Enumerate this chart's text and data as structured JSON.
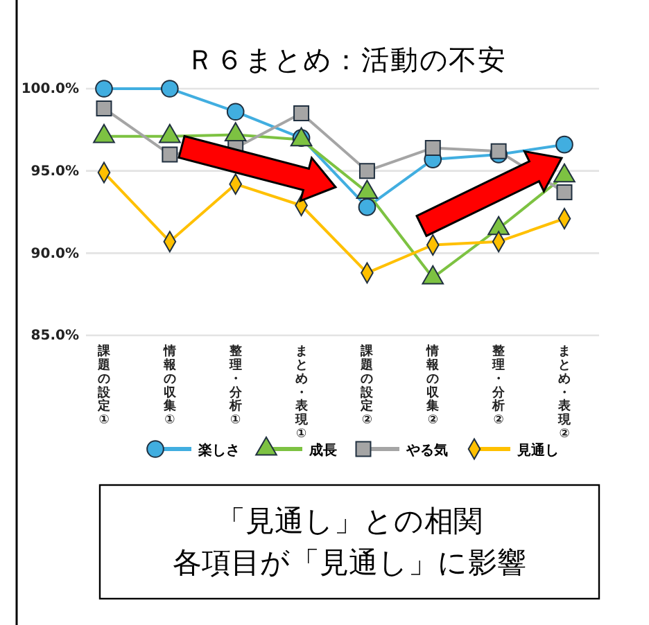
{
  "chart_data": {
    "type": "line",
    "title": "Ｒ６まとめ：活動の不安",
    "categories": [
      "課題の設定①",
      "情報の収集①",
      "整理・分析①",
      "まとめ・表現①",
      "課題の設定②",
      "情報の収集②",
      "整理・分析②",
      "まとめ・表現②"
    ],
    "series": [
      {
        "name": "楽しさ",
        "color": "#41aee0",
        "marker": "circle",
        "values": [
          100.0,
          100.0,
          98.6,
          97.0,
          92.8,
          95.7,
          96.0,
          96.6
        ]
      },
      {
        "name": "成長",
        "color": "#7dc242",
        "marker": "triangle",
        "values": [
          97.1,
          97.1,
          97.2,
          96.9,
          93.7,
          88.5,
          91.5,
          94.7
        ]
      },
      {
        "name": "やる気",
        "color": "#a5a5a5",
        "marker": "square",
        "values": [
          98.8,
          96.0,
          96.4,
          98.5,
          95.0,
          96.4,
          96.2,
          93.7
        ]
      },
      {
        "name": "見通し",
        "color": "#ffc000",
        "marker": "diamond",
        "values": [
          94.9,
          90.7,
          94.2,
          92.9,
          88.8,
          90.5,
          90.7,
          92.1
        ]
      }
    ],
    "ylim": [
      85,
      100
    ],
    "yticks": [
      {
        "value": 85,
        "label": "85.0%"
      },
      {
        "value": 90,
        "label": "90.0%"
      },
      {
        "value": 95,
        "label": "95.0%"
      },
      {
        "value": 100,
        "label": "100.0%"
      }
    ],
    "grid": "y",
    "legend": "bottom",
    "annotations": [
      "「見通し」との相関",
      "各項目が「見通し」に影響"
    ]
  }
}
